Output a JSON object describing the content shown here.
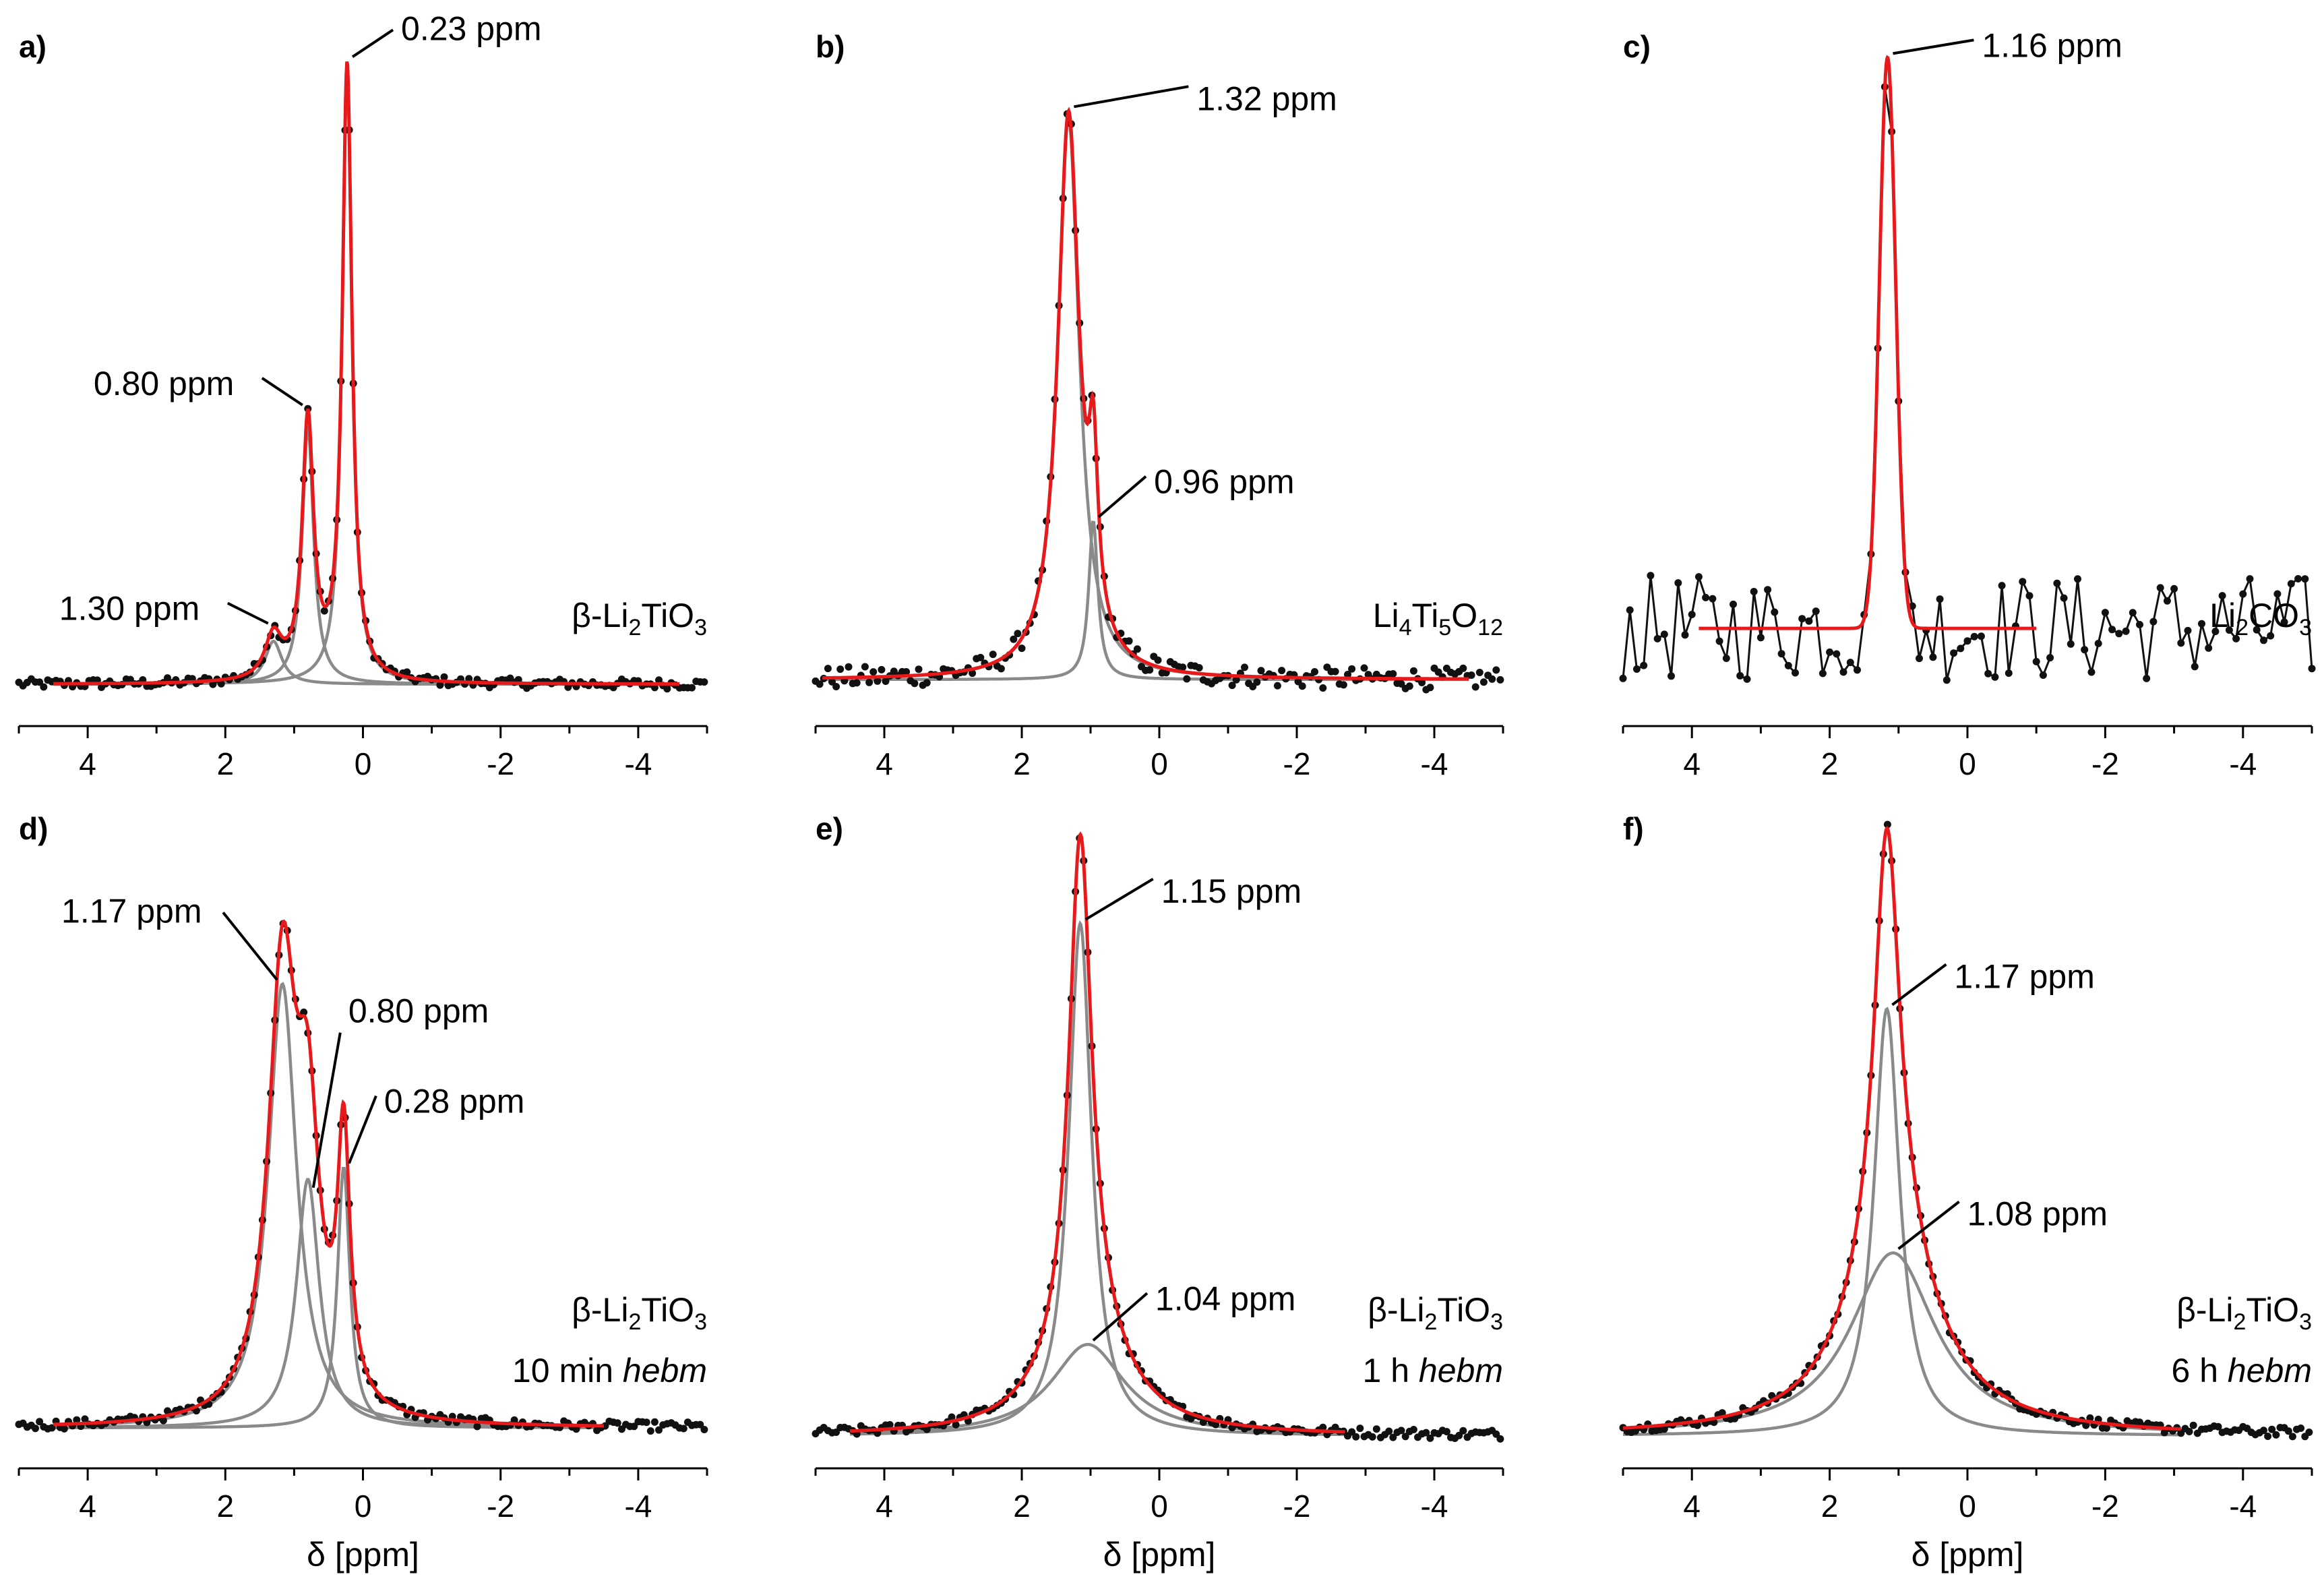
{
  "chart_data": [
    {
      "type": "line",
      "panel": "a)",
      "xlim": [
        5,
        -5
      ],
      "ylim": [
        -0.06,
        1.02
      ],
      "xticks": [
        4,
        2,
        0,
        -2,
        -4
      ],
      "xlabel": "",
      "sample_label": [
        "β-Li2TiO3"
      ],
      "peaks": [
        {
          "center": 0.23,
          "amp": 1.0,
          "width": 0.17
        },
        {
          "center": 0.8,
          "amp": 0.42,
          "width": 0.2
        },
        {
          "center": 1.3,
          "amp": 0.07,
          "width": 0.3
        }
      ],
      "profile": "lorentz",
      "fit_range": [
        4.5,
        -4.6
      ],
      "annotations": [
        {
          "text": "0.23 ppm",
          "x": 0.23
        },
        {
          "text": "0.80 ppm",
          "x": 0.8
        },
        {
          "text": "1.30 ppm",
          "x": 1.3
        }
      ]
    },
    {
      "type": "line",
      "panel": "b)",
      "xlim": [
        5,
        -5
      ],
      "ylim": [
        -0.06,
        1.02
      ],
      "xticks": [
        4,
        2,
        0,
        -2,
        -4
      ],
      "xlabel": "",
      "sample_label": [
        "Li4Ti5O12"
      ],
      "peaks": [
        {
          "center": 1.32,
          "amp": 0.92,
          "width": 0.38
        },
        {
          "center": 0.96,
          "amp": 0.26,
          "width": 0.16
        }
      ],
      "profile": "lorentz",
      "fit_range": [
        4.9,
        -4.5
      ],
      "annotations": [
        {
          "text": "1.32 ppm",
          "x": 1.32
        },
        {
          "text": "0.96 ppm",
          "x": 0.96
        }
      ]
    },
    {
      "type": "line",
      "panel": "c)",
      "xlim": [
        5,
        -5
      ],
      "ylim": [
        -0.06,
        1.02
      ],
      "xticks": [
        4,
        2,
        0,
        -2,
        -4
      ],
      "xlabel": "",
      "sample_label": [
        "Li2CO3"
      ],
      "peaks": [
        {
          "center": 1.16,
          "amp": 0.96,
          "width": 0.28
        }
      ],
      "profile": "gauss",
      "baseline": 0.06,
      "fit_range": [
        3.9,
        -1.0
      ],
      "annotations": [
        {
          "text": "1.16 ppm",
          "x": 1.16
        }
      ]
    },
    {
      "type": "line",
      "panel": "d)",
      "xlim": [
        5,
        -5
      ],
      "ylim": [
        -0.06,
        1.02
      ],
      "xticks": [
        4,
        2,
        0,
        -2,
        -4
      ],
      "xlabel": "δ [ppm]",
      "sample_label": [
        "β-Li2TiO3",
        "10 min hebm"
      ],
      "peaks": [
        {
          "center": 1.17,
          "amp": 0.75,
          "width": 0.5
        },
        {
          "center": 0.8,
          "amp": 0.42,
          "width": 0.4
        },
        {
          "center": 0.28,
          "amp": 0.44,
          "width": 0.22
        }
      ],
      "profile": "lorentz",
      "fit_range": [
        4.5,
        -3.5
      ],
      "annotations": [
        {
          "text": "1.17 ppm",
          "x": 1.17
        },
        {
          "text": "0.80 ppm",
          "x": 0.8
        },
        {
          "text": "0.28 ppm",
          "x": 0.28
        }
      ]
    },
    {
      "type": "line",
      "panel": "e)",
      "xlim": [
        5,
        -5
      ],
      "ylim": [
        -0.06,
        1.02
      ],
      "xticks": [
        4,
        2,
        0,
        -2,
        -4
      ],
      "xlabel": "δ [ppm]",
      "sample_label": [
        "β-Li2TiO3",
        "1 h hebm"
      ],
      "peaks": [
        {
          "center": 1.15,
          "amp": 0.84,
          "width": 0.4
        },
        {
          "center": 1.04,
          "amp": 0.15,
          "width": 1.3
        }
      ],
      "profile": "lorentz",
      "fit_range": [
        4.5,
        -2.7
      ],
      "annotations": [
        {
          "text": "1.15 ppm",
          "x": 1.15
        },
        {
          "text": "1.04 ppm",
          "x": 1.04
        }
      ]
    },
    {
      "type": "line",
      "panel": "f)",
      "xlim": [
        5,
        -5
      ],
      "ylim": [
        -0.06,
        1.02
      ],
      "xticks": [
        4,
        2,
        0,
        -2,
        -4
      ],
      "xlabel": "δ [ppm]",
      "sample_label": [
        "β-Li2TiO3",
        "6 h hebm"
      ],
      "peaks": [
        {
          "center": 1.17,
          "amp": 0.7,
          "width": 0.45
        },
        {
          "center": 1.08,
          "amp": 0.3,
          "width": 1.5
        }
      ],
      "profile": "lorentz",
      "fit_range": [
        5.0,
        -3.1
      ],
      "annotations": [
        {
          "text": "1.17 ppm",
          "x": 1.17
        },
        {
          "text": "1.08 ppm",
          "x": 1.08
        }
      ]
    }
  ],
  "colors": {
    "fit": "#e8191b",
    "components": "#8a8a8a",
    "data": "#111111",
    "axis": "#000000"
  }
}
